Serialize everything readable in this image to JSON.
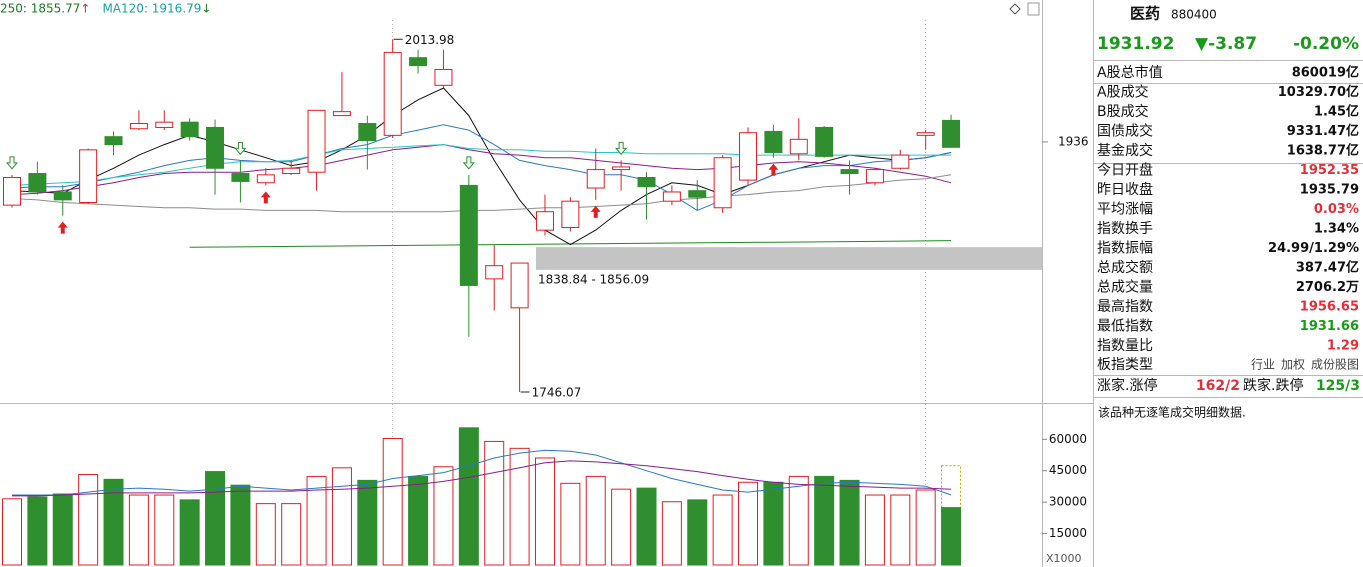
{
  "chart_data": [
    {
      "type": "candlestick",
      "legend": [
        {
          "text": "250: 1855.77",
          "color": "#1e7b1e",
          "arrow": "↑",
          "arrow_color": "#e02020"
        },
        {
          "text": "MA120: 1916.79",
          "color": "#17a3a3",
          "arrow": "↓",
          "arrow_color": "#1e7b1e"
        }
      ],
      "open": [
        1888,
        1912,
        1898,
        1890,
        1940,
        1946,
        1947,
        1951,
        1947,
        1912,
        1905,
        1912,
        1913,
        1956,
        1950,
        1941,
        2000,
        1979,
        1903,
        1832,
        1810,
        1869,
        1871,
        1901,
        1915,
        1909,
        1891,
        1899,
        1886,
        1907,
        1944,
        1927,
        1947,
        1915,
        1905,
        1916,
        1941,
        1952.35
      ],
      "high": [
        1911,
        1921,
        1903,
        1931,
        1944,
        1960,
        1960,
        1954,
        1953,
        1922,
        1916,
        1922,
        1960,
        1989,
        1956,
        2013.98,
        2006,
        2006,
        1911,
        1858,
        1844,
        1896,
        1894,
        1931,
        1922,
        1913,
        1903,
        1907,
        1926,
        1947,
        1949,
        1954,
        1948,
        1922,
        1916,
        1930,
        1945,
        1956.65
      ],
      "low": [
        1886,
        1896,
        1880,
        1889,
        1926,
        1945,
        1945,
        1937,
        1896,
        1890,
        1903,
        1911,
        1899,
        1956,
        1915,
        1939,
        1988,
        1977,
        1788,
        1808,
        1746.07,
        1865,
        1868,
        1892,
        1899,
        1877,
        1888,
        1884,
        1882,
        1903,
        1924,
        1922,
        1924,
        1896,
        1903,
        1915,
        1930,
        1931.66
      ],
      "close": [
        1909,
        1898,
        1892,
        1930,
        1934,
        1950,
        1951,
        1940,
        1916,
        1906,
        1911,
        1916,
        1960,
        1959,
        1937,
        2004,
        1994,
        1991,
        1827,
        1842,
        1844,
        1883,
        1891,
        1915,
        1917,
        1902,
        1898,
        1894,
        1924,
        1943,
        1928,
        1938,
        1925,
        1912,
        1915,
        1926,
        1943,
        1931.92
      ],
      "up_color": "#e02020",
      "down_color": "#2f8f2f",
      "ylim": [
        1740,
        2040
      ],
      "yticks": [
        1936
      ],
      "series": [
        {
          "color": "#111111",
          "values": [
            1899,
            1898,
            1897,
            1907,
            1916,
            1926,
            1934,
            1941,
            1936,
            1930,
            1924,
            1918,
            1921,
            1930,
            1941,
            1956,
            1968,
            1977,
            1956,
            1922,
            1892,
            1869,
            1858,
            1869,
            1884,
            1896,
            1905,
            1903,
            1896,
            1903,
            1911,
            1916,
            1921,
            1926,
            1924,
            1922,
            1924,
            1928
          ]
        },
        {
          "color": "#2a78c8",
          "values": [
            1901,
            1902,
            1902,
            1905,
            1909,
            1913,
            1918,
            1922,
            1924,
            1922,
            1921,
            1921,
            1926,
            1931,
            1934,
            1941,
            1945,
            1949,
            1945,
            1934,
            1922,
            1918,
            1915,
            1911,
            1911,
            1907,
            1896,
            1884,
            1892,
            1903,
            1911,
            1916,
            1918,
            1918,
            1921,
            1922,
            1924,
            1928
          ]
        },
        {
          "color": "#8a1c8a",
          "values": [
            1896,
            1897,
            1899,
            1902,
            1905,
            1909,
            1912,
            1913,
            1913,
            1913,
            1915,
            1916,
            1918,
            1922,
            1926,
            1930,
            1932,
            1934,
            1930,
            1927,
            1926,
            1924,
            1924,
            1922,
            1920,
            1918,
            1916,
            1915,
            1916,
            1918,
            1920,
            1921,
            1920,
            1918,
            1916,
            1913,
            1910,
            1905
          ]
        },
        {
          "color": "#2ec4c4",
          "values": [
            1903,
            1904,
            1905,
            1906,
            1909,
            1911,
            1913,
            1916,
            1919,
            1921,
            1921,
            1922,
            1926,
            1930,
            1931,
            1932,
            1933,
            1934,
            1931,
            1930,
            1930,
            1929,
            1929,
            1928,
            1928,
            1927,
            1927,
            1927,
            1927,
            1926,
            1926,
            1926,
            1926,
            1926,
            1926,
            1926,
            1926,
            1926
          ]
        },
        {
          "color": "#8c8c8c",
          "values": [
            1893,
            1892,
            1890,
            1889,
            1888,
            1887,
            1886,
            1886,
            1885,
            1885,
            1884,
            1884,
            1884,
            1883,
            1883,
            1883,
            1883,
            1883,
            1884,
            1884,
            1885,
            1886,
            1886,
            1887,
            1888,
            1889,
            1892,
            1893,
            1895,
            1896,
            1898,
            1899,
            1902,
            1903,
            1905,
            1907,
            1908,
            1911
          ]
        }
      ],
      "trendline": {
        "color": "#1e8a1e",
        "x": [
          7,
          37
        ],
        "values": [
          1856,
          1861
        ]
      },
      "band": {
        "low": 1838.84,
        "high": 1856.09,
        "from_index": 21,
        "color": "#c4c4c4",
        "label": "1838.84 - 1856.09"
      },
      "annotations": [
        {
          "index": 15,
          "value": 2013.98
        },
        {
          "index": 20,
          "value": 1746.07
        }
      ],
      "buy_signals": [
        2,
        10,
        23,
        30
      ],
      "sell_signals": [
        0,
        9,
        18,
        24
      ]
    },
    {
      "type": "bar",
      "values": [
        31600,
        32500,
        33900,
        43200,
        40900,
        33400,
        33400,
        31100,
        44600,
        38100,
        29300,
        29300,
        42300,
        46400,
        40400,
        60400,
        42300,
        46900,
        65500,
        59000,
        55700,
        51100,
        39000,
        42300,
        36200,
        36700,
        30200,
        31100,
        33400,
        39500,
        39500,
        42300,
        42300,
        40400,
        33400,
        33400,
        35800,
        27400
      ],
      "projected": 47400,
      "up_color": "#e02020",
      "down_color": "#2f8f2f",
      "ylim": [
        0,
        74000
      ],
      "yticks": [
        15000,
        30000,
        45000,
        60000
      ],
      "axis_unit": "X1000",
      "series": [
        {
          "color": "#2a78c8",
          "values": [
            33400,
            33400,
            33400,
            34800,
            36200,
            36700,
            36200,
            35300,
            36200,
            37600,
            36700,
            35800,
            36700,
            37600,
            38500,
            41300,
            42700,
            44100,
            47400,
            51100,
            53400,
            54800,
            54300,
            52500,
            48800,
            45000,
            41300,
            38500,
            35800,
            34800,
            36200,
            37600,
            39000,
            39500,
            39000,
            38500,
            37600,
            33400
          ]
        },
        {
          "color": "#8a1c8a",
          "values": [
            33000,
            33000,
            33400,
            33900,
            34400,
            34400,
            34400,
            34400,
            34800,
            35300,
            35300,
            35300,
            35800,
            36200,
            36700,
            37600,
            38500,
            39900,
            41800,
            44100,
            46400,
            48800,
            49700,
            49200,
            48300,
            47400,
            46000,
            44600,
            42700,
            40900,
            39500,
            38500,
            38100,
            37600,
            37200,
            36700,
            36700,
            36200
          ]
        }
      ]
    }
  ],
  "panel": {
    "name": "医药",
    "code": "880400",
    "price": "1931.92",
    "change": "▼-3.87",
    "change_pct": "-0.20%",
    "quote_color": "#1a9a1a",
    "rows": [
      {
        "label": "A股总市值",
        "value": "860019亿",
        "color": "#111111"
      },
      {
        "label": "A股成交",
        "value": "10329.70亿",
        "color": "#111111"
      },
      {
        "label": "B股成交",
        "value": "1.45亿",
        "color": "#111111"
      },
      {
        "label": "国债成交",
        "value": "9331.47亿",
        "color": "#111111"
      },
      {
        "label": "基金成交",
        "value": "1638.77亿",
        "color": "#111111"
      },
      {
        "label": "今日开盘",
        "value": "1952.35",
        "color": "#e0303a"
      },
      {
        "label": "昨日收盘",
        "value": "1935.79",
        "color": "#111111"
      },
      {
        "label": "平均涨幅",
        "value": "0.03%",
        "color": "#e0303a"
      },
      {
        "label": "指数换手",
        "value": "1.34%",
        "color": "#111111"
      },
      {
        "label": "指数振幅",
        "value": "24.99/1.29%",
        "color": "#111111"
      },
      {
        "label": "总成交额",
        "value": "387.47亿",
        "color": "#111111"
      },
      {
        "label": "总成交量",
        "value": "2706.2万",
        "color": "#111111"
      },
      {
        "label": "最高指数",
        "value": "1956.65",
        "color": "#e0303a"
      },
      {
        "label": "最低指数",
        "value": "1931.66",
        "color": "#1a9a1a"
      },
      {
        "label": "指数量比",
        "value": "1.29",
        "color": "#e0303a"
      }
    ],
    "board_type": {
      "label": "板指类型",
      "options": [
        "行业",
        "加权",
        "成份股图"
      ]
    },
    "breadth": {
      "up_label": "涨家.涨停",
      "up_value": "162/2",
      "up_color": "#e0303a",
      "down_label": "跌家.跌停",
      "down_value": "125/3",
      "down_color": "#1a9a1a"
    },
    "note": "该品种无逐笔成交明细数据."
  }
}
